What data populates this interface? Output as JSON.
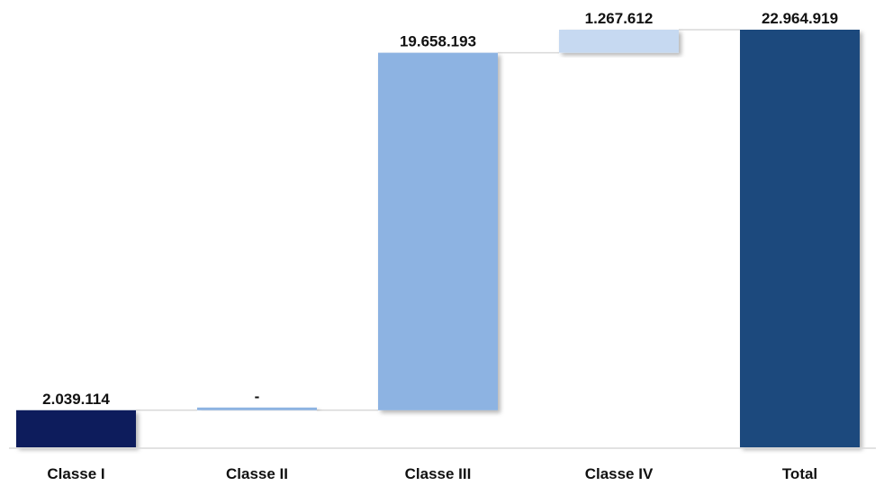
{
  "chart_data": {
    "type": "bar",
    "subtype": "waterfall",
    "categories": [
      "Classe I",
      "Classe II",
      "Classe III",
      "Classe IV",
      "Total"
    ],
    "values": [
      2039114,
      0,
      19658193,
      1267612,
      22964919
    ],
    "value_labels": [
      "2.039.114",
      "-",
      "19.658.193",
      "1.267.612",
      "22.964.919"
    ],
    "is_total": [
      false,
      false,
      false,
      false,
      true
    ],
    "colors": [
      "#0b1f5c",
      "#8db3e2",
      "#8db3e2",
      "#c6d9f1",
      "#1f497d"
    ],
    "connector_color": "#d9d9d9",
    "axis_color": "#d9d9d9",
    "ylim": [
      0,
      22964919
    ],
    "title": "",
    "xlabel": "",
    "ylabel": "",
    "grid": false,
    "legend": "none"
  }
}
